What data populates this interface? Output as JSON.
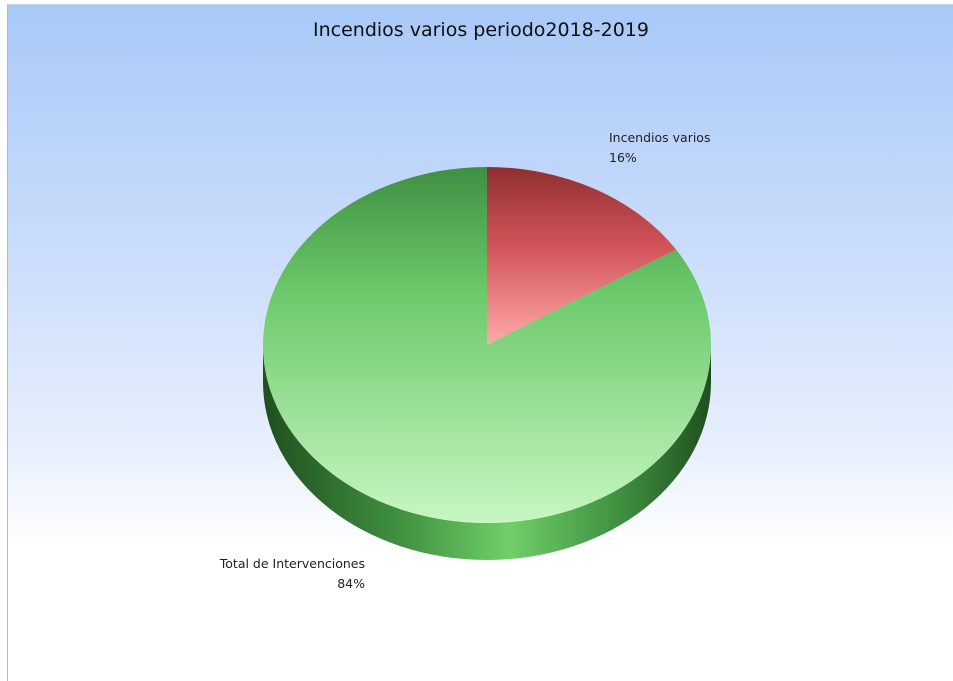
{
  "chart_data": {
    "type": "pie",
    "title": "Incendios varios periodo2018-2019",
    "three_d": true,
    "slices": [
      {
        "name": "Incendios varios",
        "percent_label": "16%",
        "value": 16,
        "color": "#d9545c"
      },
      {
        "name": "Total de Intervenciones",
        "percent_label": "84%",
        "value": 84,
        "color": "#6cc96a"
      }
    ]
  }
}
